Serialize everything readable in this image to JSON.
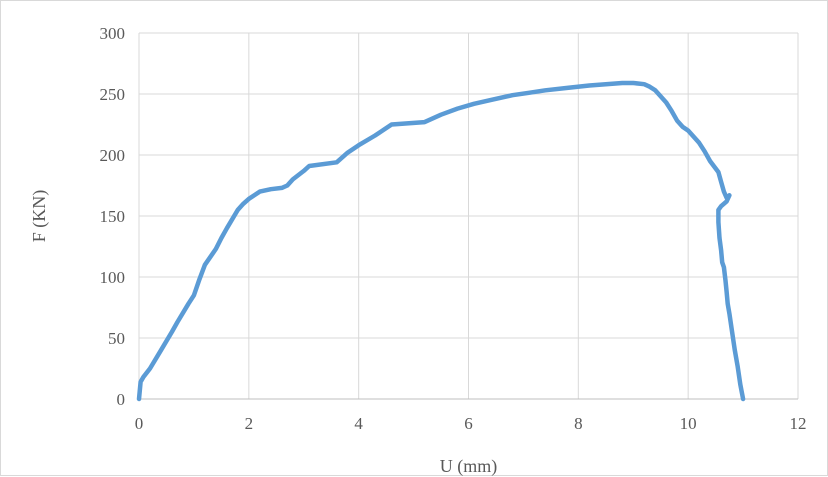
{
  "chart_data": {
    "type": "line",
    "title": "",
    "xlabel": "U (mm)",
    "ylabel": "F (KN)",
    "xlim": [
      0,
      12
    ],
    "ylim": [
      0,
      300
    ],
    "xticks": [
      0,
      2,
      4,
      6,
      8,
      10,
      12
    ],
    "yticks": [
      0,
      50,
      100,
      150,
      200,
      250,
      300
    ],
    "grid": true,
    "legend": "none",
    "series": [
      {
        "color": "#5b9bd5",
        "x": [
          0,
          0.03,
          0.08,
          0.2,
          0.4,
          0.6,
          0.7,
          0.9,
          1.0,
          1.1,
          1.2,
          1.4,
          1.5,
          1.6,
          1.8,
          1.9,
          2.0,
          2.2,
          2.4,
          2.6,
          2.7,
          2.8,
          3.0,
          3.1,
          3.6,
          3.8,
          4.0,
          4.3,
          4.6,
          5.2,
          5.5,
          5.8,
          6.1,
          6.4,
          6.8,
          7.1,
          7.4,
          7.8,
          8.2,
          8.5,
          8.8,
          9.0,
          9.2,
          9.3,
          9.4,
          9.5,
          9.6,
          9.7,
          9.8,
          9.9,
          10.0,
          10.2,
          10.3,
          10.4,
          10.55,
          10.6,
          10.65,
          10.7,
          10.75,
          10.7,
          10.6,
          10.55,
          10.55,
          10.57,
          10.6,
          10.62,
          10.65,
          10.68,
          10.7,
          10.72,
          10.75,
          10.8,
          10.85,
          10.9,
          10.95,
          11.0
        ],
        "y": [
          0,
          14,
          18,
          25,
          40,
          55,
          63,
          78,
          85,
          98,
          110,
          123,
          132,
          140,
          155,
          160,
          164,
          170,
          172,
          173,
          175,
          180,
          187,
          191,
          194,
          202,
          208,
          216,
          225,
          227,
          233,
          238,
          242,
          245,
          249,
          251,
          253,
          255,
          257,
          258,
          259,
          259,
          258,
          256,
          253,
          248,
          243,
          236,
          228,
          223,
          220,
          210,
          203,
          195,
          186,
          178,
          170,
          165,
          167,
          162,
          158,
          155,
          145,
          132,
          122,
          112,
          108,
          97,
          88,
          78,
          70,
          55,
          40,
          27,
          12,
          0
        ]
      }
    ]
  }
}
